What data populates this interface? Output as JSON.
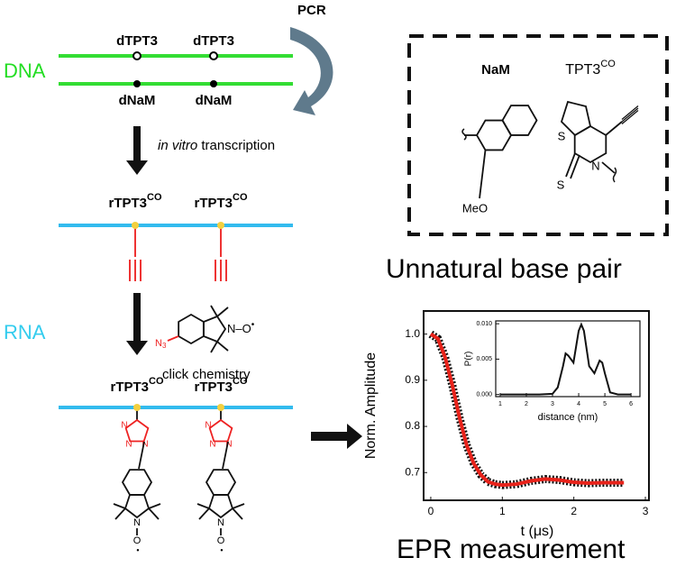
{
  "dna": {
    "label": "DNA",
    "top_labels": [
      "dTPT3",
      "dTPT3"
    ],
    "bottom_labels": [
      "dNaM",
      "dNaM"
    ],
    "pcr": "PCR"
  },
  "transcription": {
    "italic": "in vitro",
    "text": " transcription"
  },
  "rna": {
    "label": "RNA",
    "strand_labels": [
      {
        "base": "rTPT3",
        "sup": "CO"
      },
      {
        "base": "rTPT3",
        "sup": "CO"
      }
    ],
    "azide": {
      "n": "N",
      "sub": "3",
      "no": "N–O",
      "radical": "•"
    },
    "click": "click chemistry",
    "labeled_labels": [
      {
        "base": "rTPT3",
        "sup": "CO"
      },
      {
        "base": "rTPT3",
        "sup": "CO"
      }
    ],
    "triazole_atoms": [
      "N",
      "N",
      "N"
    ],
    "nitroxide": {
      "n": "N",
      "o": "O",
      "radical": "•"
    }
  },
  "base_pair": {
    "nam": "NaM",
    "tpt3": {
      "base": "TPT3",
      "sup": "CO"
    },
    "meo": "MeO",
    "s_ring": "S",
    "s_thione": "S",
    "n": "N",
    "title": "Unnatural base pair"
  },
  "epr": {
    "title": "EPR measurement",
    "ylabel": "Norm. Amplitude",
    "xlabel": "t (μs)",
    "xlim": [
      -0.1,
      3.05
    ],
    "ylim": [
      0.64,
      1.05
    ],
    "xticks": [
      0,
      1,
      2,
      3
    ],
    "yticks": [
      0.7,
      0.8,
      0.9,
      {
        "value": 1.0,
        "label": "1.0"
      }
    ],
    "curve": {
      "x": [
        0,
        0.1,
        0.2,
        0.3,
        0.4,
        0.5,
        0.6,
        0.7,
        0.8,
        0.9,
        1.0,
        1.2,
        1.4,
        1.6,
        1.8,
        2.0,
        2.2,
        2.4,
        2.7
      ],
      "y": [
        1.0,
        0.99,
        0.95,
        0.89,
        0.82,
        0.76,
        0.72,
        0.695,
        0.68,
        0.675,
        0.673,
        0.675,
        0.682,
        0.686,
        0.684,
        0.679,
        0.677,
        0.678,
        0.678
      ]
    },
    "inset": {
      "ylabel": "P(r)",
      "xlabel": "distance (nm)",
      "xlim": [
        0.83,
        6.34
      ],
      "ylim": [
        -0.0003,
        0.0104
      ],
      "xticks": [
        1,
        2,
        3,
        4,
        5,
        6
      ],
      "yticks": [
        {
          "value": 0,
          "label": "0.000"
        },
        {
          "value": 0.005,
          "label": "0.005"
        },
        {
          "value": 0.01,
          "label": "0.010"
        }
      ],
      "x": [
        1,
        2,
        2.5,
        3,
        3.2,
        3.4,
        3.5,
        3.6,
        3.8,
        4.0,
        4.1,
        4.2,
        4.4,
        4.6,
        4.8,
        4.9,
        5.0,
        5.2,
        5.5,
        6
      ],
      "y": [
        0,
        0,
        0,
        0.0001,
        0.001,
        0.004,
        0.0058,
        0.0055,
        0.0045,
        0.009,
        0.0099,
        0.009,
        0.004,
        0.003,
        0.0048,
        0.0045,
        0.003,
        0.0003,
        0,
        0
      ]
    }
  }
}
